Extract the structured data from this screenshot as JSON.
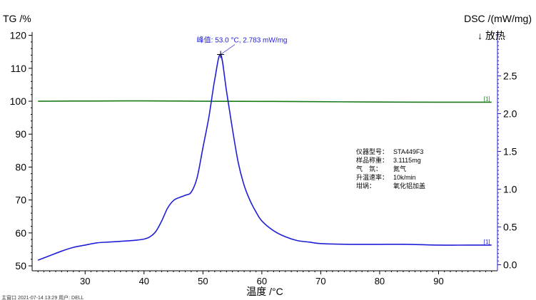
{
  "chart_data": {
    "type": "line",
    "title": "",
    "xlabel": "温度 /°C",
    "ylabel_left": "TG /%",
    "ylabel_right": "DSC /(mW/mg)",
    "exo_label": "↓ 放热",
    "xlim": [
      21,
      100
    ],
    "ylim_left": [
      48.5,
      121
    ],
    "ylim_right": [
      -0.08,
      3.08
    ],
    "x_ticks": [
      30,
      40,
      50,
      60,
      70,
      80,
      90
    ],
    "y_left_ticks": [
      50,
      60,
      70,
      80,
      90,
      100,
      110,
      120
    ],
    "y_right_ticks": [
      0.0,
      0.5,
      1.0,
      1.5,
      2.0,
      2.5
    ],
    "y_right_tick_labels": [
      "0.0",
      "0.5",
      "1.0",
      "1.5",
      "2.0",
      "2.5"
    ],
    "series": [
      {
        "name": "",
        "axis": "left",
        "color": "#1a7a1a",
        "end_marker": "[1]",
        "points": [
          [
            22,
            100.0
          ],
          [
            30,
            100.05
          ],
          [
            40,
            100.1
          ],
          [
            50,
            100.0
          ],
          [
            60,
            99.95
          ],
          [
            70,
            99.85
          ],
          [
            80,
            99.75
          ],
          [
            90,
            99.7
          ],
          [
            99,
            99.7
          ]
        ]
      },
      {
        "name": "",
        "axis": "right",
        "color": "#1f1fd6",
        "end_marker": "[1]",
        "points": [
          [
            22,
            0.06
          ],
          [
            24,
            0.12
          ],
          [
            26,
            0.18
          ],
          [
            28,
            0.23
          ],
          [
            30,
            0.26
          ],
          [
            32,
            0.29
          ],
          [
            34,
            0.3
          ],
          [
            36,
            0.31
          ],
          [
            38,
            0.32
          ],
          [
            40,
            0.34
          ],
          [
            41,
            0.37
          ],
          [
            42,
            0.44
          ],
          [
            43,
            0.58
          ],
          [
            44,
            0.75
          ],
          [
            45,
            0.85
          ],
          [
            46,
            0.89
          ],
          [
            47,
            0.92
          ],
          [
            48,
            0.96
          ],
          [
            49,
            1.15
          ],
          [
            50,
            1.55
          ],
          [
            51,
            1.95
          ],
          [
            52,
            2.45
          ],
          [
            53,
            2.783
          ],
          [
            54,
            2.3
          ],
          [
            55,
            1.8
          ],
          [
            56,
            1.35
          ],
          [
            57,
            1.05
          ],
          [
            58,
            0.85
          ],
          [
            59,
            0.7
          ],
          [
            60,
            0.58
          ],
          [
            62,
            0.45
          ],
          [
            64,
            0.37
          ],
          [
            66,
            0.32
          ],
          [
            68,
            0.3
          ],
          [
            70,
            0.28
          ],
          [
            75,
            0.27
          ],
          [
            80,
            0.27
          ],
          [
            85,
            0.27
          ],
          [
            90,
            0.26
          ],
          [
            95,
            0.26
          ],
          [
            99,
            0.26
          ]
        ]
      }
    ],
    "annotations": [
      {
        "text": "峰值: 53.0 °C, 2.783 mW/mg",
        "x": 53.0,
        "y": 2.783,
        "axis": "right",
        "color": "#1f1fd6"
      }
    ],
    "info_box": [
      {
        "label": "仪器型号：",
        "value": "STA449F3"
      },
      {
        "label": "样品称重：",
        "value": "3.1115mg"
      },
      {
        "label": "气　氛：",
        "value": "氮气"
      },
      {
        "label": "升温速率：",
        "value": "10k/min"
      },
      {
        "label": "坩埚：",
        "value": "氧化铝加盖"
      }
    ],
    "footer": "主窗口    2021-07-14 13:29    用户: DELL"
  }
}
